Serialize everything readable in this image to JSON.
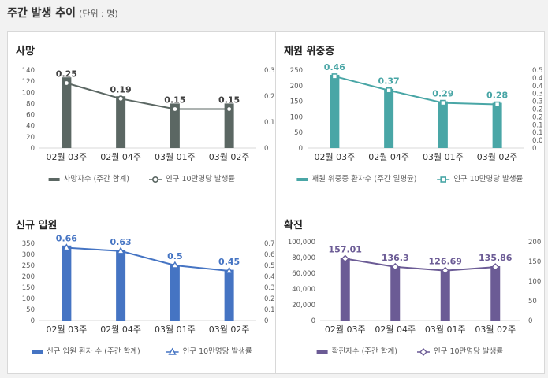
{
  "page": {
    "title": "주간 발생 추이",
    "unit": "(단위 : 명)"
  },
  "colors": {
    "deaths": "#5b6763",
    "severe": "#49a6a6",
    "admissions": "#4574c3",
    "confirmed": "#6b5b95"
  },
  "chart_data": [
    {
      "id": "deaths",
      "type": "bar",
      "title": "사망",
      "categories": [
        "02월 03주",
        "02월 04주",
        "03월 01주",
        "03월 02주"
      ],
      "series": [
        {
          "name": "사망자수 (주간 합계)",
          "type": "bar",
          "axis": "left",
          "values": [
            127,
            93,
            80,
            80
          ]
        },
        {
          "name": "인구 10만명당 발생률",
          "type": "line",
          "axis": "right",
          "marker": "circle",
          "values": [
            0.25,
            0.19,
            0.15,
            0.15
          ],
          "labels": [
            "0.25",
            "0.19",
            "0.15",
            "0.15"
          ]
        }
      ],
      "y_left": {
        "min": 0,
        "max": 140,
        "ticks": [
          "0",
          "20",
          "40",
          "60",
          "80",
          "100",
          "120",
          "140"
        ]
      },
      "y_right": {
        "min": 0,
        "max": 0.3,
        "ticks": [
          "0",
          "0.1",
          "0.2",
          "0.3"
        ]
      }
    },
    {
      "id": "severe",
      "type": "bar",
      "title": "재원 위중증",
      "categories": [
        "02월 03주",
        "02월 04주",
        "03월 01주",
        "03월 02주"
      ],
      "series": [
        {
          "name": "재원 위중증 환자수 (주간 일평균)",
          "type": "bar",
          "axis": "left",
          "values": [
            235,
            190,
            150,
            145
          ]
        },
        {
          "name": "인구 10만명당 발생률",
          "type": "line",
          "axis": "right",
          "marker": "square",
          "values": [
            0.46,
            0.37,
            0.29,
            0.28
          ],
          "labels": [
            "0.46",
            "0.37",
            "0.29",
            "0.28"
          ]
        }
      ],
      "y_left": {
        "min": 0,
        "max": 250,
        "ticks": [
          "0",
          "50",
          "100",
          "150",
          "200",
          "250"
        ]
      },
      "y_right": {
        "min": 0,
        "max": 0.5,
        "ticks": [
          "0",
          "0.05",
          "0.1",
          "0.15",
          "0.2",
          "0.25",
          "0.3",
          "0.35",
          "0.4",
          "0.45",
          "0.5"
        ]
      }
    },
    {
      "id": "admissions",
      "type": "bar",
      "title": "신규 입원",
      "categories": [
        "02월 03주",
        "02월 04주",
        "03월 01주",
        "03월 02주"
      ],
      "series": [
        {
          "name": "신규 입원 환자 수 (주간 합계)",
          "type": "bar",
          "axis": "left",
          "values": [
            340,
            318,
            252,
            230
          ]
        },
        {
          "name": "인구 10만명당 발생률",
          "type": "line",
          "axis": "right",
          "marker": "triangle",
          "values": [
            0.66,
            0.63,
            0.5,
            0.45
          ],
          "labels": [
            "0.66",
            "0.63",
            "0.5",
            "0.45"
          ]
        }
      ],
      "y_left": {
        "min": 0,
        "max": 350,
        "ticks": [
          "0",
          "50",
          "100",
          "150",
          "200",
          "250",
          "300",
          "350"
        ]
      },
      "y_right": {
        "min": 0,
        "max": 0.7,
        "ticks": [
          "0",
          "0.1",
          "0.2",
          "0.3",
          "0.4",
          "0.5",
          "0.6",
          "0.7"
        ]
      }
    },
    {
      "id": "confirmed",
      "type": "bar",
      "title": "확진",
      "categories": [
        "02월 03주",
        "02월 04주",
        "03월 01주",
        "03월 02주"
      ],
      "series": [
        {
          "name": "확진자수 (주간 합계)",
          "type": "bar",
          "axis": "left",
          "values": [
            80000,
            69000,
            64000,
            69000
          ]
        },
        {
          "name": "인구 10만명당 발생률",
          "type": "line",
          "axis": "right",
          "marker": "diamond",
          "values": [
            157.01,
            136.3,
            126.69,
            135.86
          ],
          "labels": [
            "157.01",
            "136.3",
            "126.69",
            "135.86"
          ]
        }
      ],
      "y_left": {
        "min": 0,
        "max": 100000,
        "ticks": [
          "0",
          "20,000",
          "40,000",
          "60,000",
          "80,000",
          "100,000"
        ]
      },
      "y_right": {
        "min": 0,
        "max": 200,
        "ticks": [
          "0",
          "50",
          "100",
          "150",
          "200"
        ]
      }
    }
  ]
}
